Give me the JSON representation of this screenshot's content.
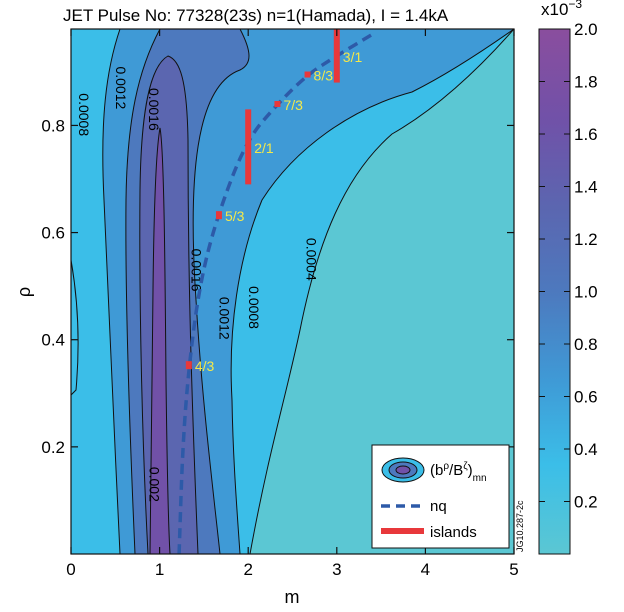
{
  "chart_data": {
    "type": "heatmap",
    "title": "JET Pulse No: 77328(23s) n=1(Hamada), I = 1.4kA",
    "xlabel": "m",
    "ylabel": "ρ",
    "xlim": [
      0,
      5
    ],
    "ylim": [
      0,
      0.98
    ],
    "x_ticks": [
      "0",
      "1",
      "2",
      "3",
      "4",
      "5"
    ],
    "y_ticks": [
      "0.2",
      "0.4",
      "0.6",
      "0.8"
    ],
    "colorbar": {
      "multiplier": "x10",
      "exponent": "−3",
      "range": [
        0,
        2.0
      ],
      "ticks": [
        "0.2",
        "0.4",
        "0.6",
        "0.8",
        "1.0",
        "1.2",
        "1.4",
        "1.6",
        "1.8",
        "2.0"
      ],
      "colors": [
        "#5BC7D3",
        "#3BBEE8",
        "#3F9AD6",
        "#4D79BE",
        "#5B66B0",
        "#7151A8",
        "#8A4E9E"
      ]
    },
    "contour_levels": [
      0.0004,
      0.0008,
      0.0012,
      0.0016,
      0.002
    ],
    "contour_labels": [
      {
        "text": "0.0008",
        "m": 0.13,
        "rho": 0.82
      },
      {
        "text": "0.0012",
        "m": 0.55,
        "rho": 0.87
      },
      {
        "text": "0.0016",
        "m": 0.92,
        "rho": 0.83
      },
      {
        "text": "0.0016",
        "m": 1.4,
        "rho": 0.53
      },
      {
        "text": "0.0012",
        "m": 1.72,
        "rho": 0.44
      },
      {
        "text": "0.0008",
        "m": 2.05,
        "rho": 0.46
      },
      {
        "text": "0.0004",
        "m": 2.7,
        "rho": 0.55
      },
      {
        "text": "0.002",
        "m": 0.93,
        "rho": 0.13
      }
    ],
    "nq_curve": [
      [
        1.22,
        0.0
      ],
      [
        1.26,
        0.2
      ],
      [
        1.33,
        0.35
      ],
      [
        1.45,
        0.5
      ],
      [
        1.63,
        0.62
      ],
      [
        1.97,
        0.77
      ],
      [
        2.33,
        0.84
      ],
      [
        2.67,
        0.895
      ],
      [
        3.0,
        0.93
      ],
      [
        3.4,
        0.97
      ]
    ],
    "islands": [
      {
        "label": "3/1",
        "m": 3.0,
        "rho_min": 0.88,
        "rho_max": 0.98
      },
      {
        "label": "8/3",
        "m": 2.67,
        "rho_min": 0.89,
        "rho_max": 0.9
      },
      {
        "label": "7/3",
        "m": 2.33,
        "rho_min": 0.835,
        "rho_max": 0.845
      },
      {
        "label": "2/1",
        "m": 2.0,
        "rho_min": 0.69,
        "rho_max": 0.83
      },
      {
        "label": "5/3",
        "m": 1.67,
        "rho_min": 0.625,
        "rho_max": 0.64
      },
      {
        "label": "4/3",
        "m": 1.33,
        "rho_min": 0.345,
        "rho_max": 0.36
      }
    ],
    "legend": {
      "position": "bottom-right",
      "entries": [
        {
          "label": "(bρ/Bζ)mn",
          "kind": "contour"
        },
        {
          "label": "nq",
          "kind": "dashed-line",
          "color": "#2D5AA8"
        },
        {
          "label": "islands",
          "kind": "thick-line",
          "color": "#E8383B"
        }
      ]
    },
    "side_text": "JG10.287-2c",
    "colors": {
      "nq": "#2D5AA8",
      "islands": "#E8383B",
      "island_text": "#F4E84A"
    }
  }
}
